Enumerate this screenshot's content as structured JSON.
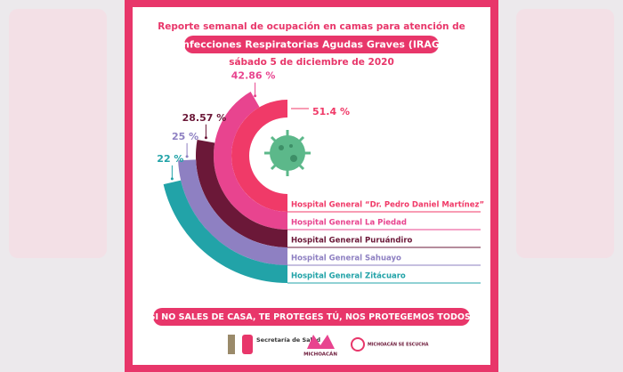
{
  "chart_data": {
    "type": "radial_bar",
    "title": "Reporte semanal de ocupación en camas para atención de",
    "subtitle": "Infecciones Respiratorias Agudas Graves (IRAG)",
    "date": "sábado 5 de diciembre de 2020",
    "categories": [
      "Hospital General “Dr. Pedro Daniel Martínez”",
      "Hospital General La Piedad",
      "Hospital General Puruándiro",
      "Hospital General Sahuayo",
      "Hospital General Zitácuaro"
    ],
    "values": [
      51.4,
      42.86,
      28.57,
      25,
      22
    ],
    "value_labels": [
      "51.4 %",
      "42.86 %",
      "28.57 %",
      "25 %",
      "22 %"
    ],
    "colors": [
      "#f03a68",
      "#e8448f",
      "#6b1838",
      "#8e80c2",
      "#22a3a8"
    ],
    "footer": "SI NO SALES DE CASA, TE PROTEGES TÚ, NOS PROTEGEMOS TODOS.",
    "logos": [
      "Secretaría de Salud",
      "MICHOACÁN",
      "MICHOACÁN SE ESCUCHA"
    ]
  }
}
